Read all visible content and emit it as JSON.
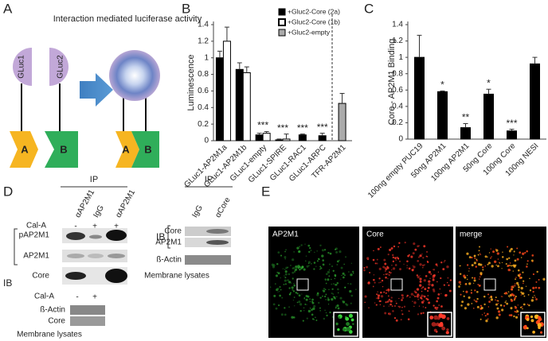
{
  "panel_labels": [
    "A",
    "B",
    "C",
    "D",
    "E"
  ],
  "panel_a": {
    "title": "Interaction mediated luciferase activity",
    "gluc1": "GLuc1",
    "gluc2": "GLuc2",
    "left": [
      "A",
      "B"
    ],
    "right": [
      "A",
      "B"
    ]
  },
  "chart_data": [
    {
      "type": "bar",
      "y_label": "Luminescence",
      "categories": [
        "GLuc1-AP2M1a",
        "GLuc1-AP2M1b",
        "GLuc1-empty",
        "GLuc1-SPIRE",
        "GLuc1-RAC1",
        "GLuc1-ARPC",
        "TFR-AP2M1"
      ],
      "series": [
        {
          "name": "+Gluc2-Core (2a)",
          "color": "#000000",
          "values": [
            1.0,
            0.86,
            0.07,
            0.01,
            0.07,
            0.06,
            null
          ],
          "errors": [
            0.08,
            0.08,
            0.02,
            0.01,
            0.01,
            0.03,
            null
          ]
        },
        {
          "name": "+Gluc2-Core (1b)",
          "color": "#ffffff",
          "values": [
            1.2,
            0.82,
            0.09,
            0.02,
            null,
            null,
            null
          ],
          "errors": [
            0.17,
            0.07,
            0.02,
            0.06,
            null,
            null,
            null
          ]
        },
        {
          "name": "+Gluc2-empty",
          "color": "#aaaaaa",
          "values": [
            null,
            null,
            null,
            null,
            null,
            null,
            0.45
          ],
          "errors": [
            null,
            null,
            null,
            null,
            null,
            null,
            0.12
          ]
        }
      ],
      "edgecolor": "#000000",
      "significance": [
        null,
        null,
        "***",
        "***",
        "***",
        "***",
        null
      ],
      "ylim": [
        0,
        1.4
      ],
      "yticks": [
        0,
        0.2,
        0.4,
        0.6,
        0.8,
        1,
        1.2,
        1.4
      ],
      "legend": "upper right"
    },
    {
      "type": "bar",
      "y_label": "Core - AP2M1 Binding",
      "categories": [
        "100ng empty PUC19",
        "50ng AP2M1",
        "100ng AP2M1",
        "50ng Core",
        "100ng Core",
        "100ng NESI"
      ],
      "values": [
        1.0,
        0.58,
        0.14,
        0.55,
        0.1,
        0.92
      ],
      "errors": [
        0.27,
        0.01,
        0.05,
        0.06,
        0.02,
        0.08
      ],
      "color": "#000000",
      "significance": [
        null,
        "*",
        "**",
        "*",
        "***",
        null
      ],
      "ylim": [
        0,
        1.4
      ],
      "yticks": [
        0,
        0.2,
        0.4,
        0.6,
        0.8,
        1,
        1.2,
        1.4
      ]
    }
  ],
  "panel_d": {
    "ip": "IP",
    "lanes": [
      "αAP2M1",
      "IgG",
      "αAP2M1"
    ],
    "treatment": "Cal-A",
    "treatment_signs": [
      "-",
      "+",
      "+"
    ],
    "ib": "IB",
    "blots": [
      "pAP2M1",
      "AP2M1",
      "Core"
    ],
    "lysate": {
      "treatment": "Cal-A",
      "signs": [
        "-",
        "+"
      ],
      "blots": [
        "ß-Actin",
        "Core"
      ],
      "caption": "Membrane lysates"
    }
  },
  "panel_d_right": {
    "ip": "IP",
    "lanes": [
      "IgG",
      "αCore"
    ],
    "ib": "IB",
    "blots": [
      "Core",
      "AP2M1"
    ],
    "actin": "ß-Actin",
    "caption": "Membrane lysates"
  },
  "panel_e": {
    "channels": [
      "AP2M1",
      "Core",
      "merge"
    ]
  }
}
